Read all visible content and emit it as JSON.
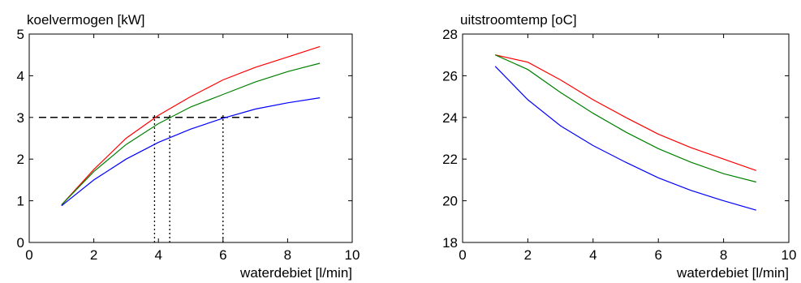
{
  "chart_data": [
    {
      "type": "line",
      "title": "koelvermogen [kW]",
      "xlabel": "waterdebiet [l/min]",
      "ylabel": "",
      "xlim": [
        0,
        10
      ],
      "ylim": [
        0,
        5
      ],
      "xticks": [
        "0",
        "2",
        "4",
        "6",
        "8",
        "10"
      ],
      "yticks": [
        "0",
        "1",
        "2",
        "3",
        "4",
        "5"
      ],
      "grid": false,
      "x": [
        1,
        2,
        3,
        4,
        5,
        6,
        7,
        8,
        9
      ],
      "series": [
        {
          "color": "#ff0000",
          "values": [
            0.9,
            1.75,
            2.5,
            3.05,
            3.5,
            3.9,
            4.2,
            4.45,
            4.7
          ]
        },
        {
          "color": "#008000",
          "values": [
            0.9,
            1.7,
            2.35,
            2.85,
            3.25,
            3.55,
            3.85,
            4.1,
            4.3
          ]
        },
        {
          "color": "#0000ff",
          "values": [
            0.88,
            1.5,
            2.0,
            2.4,
            2.72,
            2.98,
            3.2,
            3.35,
            3.47
          ]
        }
      ],
      "reference_lines": [
        {
          "orientation": "horizontal",
          "style": "dashed",
          "y": 3,
          "x_range": [
            0.3,
            7.1
          ]
        },
        {
          "orientation": "vertical",
          "style": "dotted",
          "x": 3.88,
          "y_range": [
            0,
            3.1
          ]
        },
        {
          "orientation": "vertical",
          "style": "dotted",
          "x": 4.35,
          "y_range": [
            0,
            3.1
          ]
        },
        {
          "orientation": "vertical",
          "style": "dotted",
          "x": 6.0,
          "y_range": [
            0,
            3.1
          ]
        }
      ]
    },
    {
      "type": "line",
      "title": "uitstroomtemp [oC]",
      "xlabel": "waterdebiet [l/min]",
      "ylabel": "",
      "xlim": [
        0,
        10
      ],
      "ylim": [
        18,
        28
      ],
      "xticks": [
        "0",
        "2",
        "4",
        "6",
        "8",
        "10"
      ],
      "yticks": [
        "18",
        "20",
        "22",
        "24",
        "26",
        "28"
      ],
      "grid": false,
      "x": [
        1,
        2,
        3,
        4,
        5,
        6,
        7,
        8,
        9
      ],
      "series": [
        {
          "color": "#ff0000",
          "values": [
            27.0,
            26.65,
            25.8,
            24.85,
            24.0,
            23.2,
            22.55,
            22.0,
            21.45
          ]
        },
        {
          "color": "#008000",
          "values": [
            27.0,
            26.3,
            25.2,
            24.2,
            23.3,
            22.5,
            21.85,
            21.3,
            20.9
          ]
        },
        {
          "color": "#0000ff",
          "values": [
            26.45,
            24.85,
            23.6,
            22.65,
            21.85,
            21.1,
            20.5,
            20.0,
            19.55
          ]
        }
      ],
      "reference_lines": []
    }
  ]
}
